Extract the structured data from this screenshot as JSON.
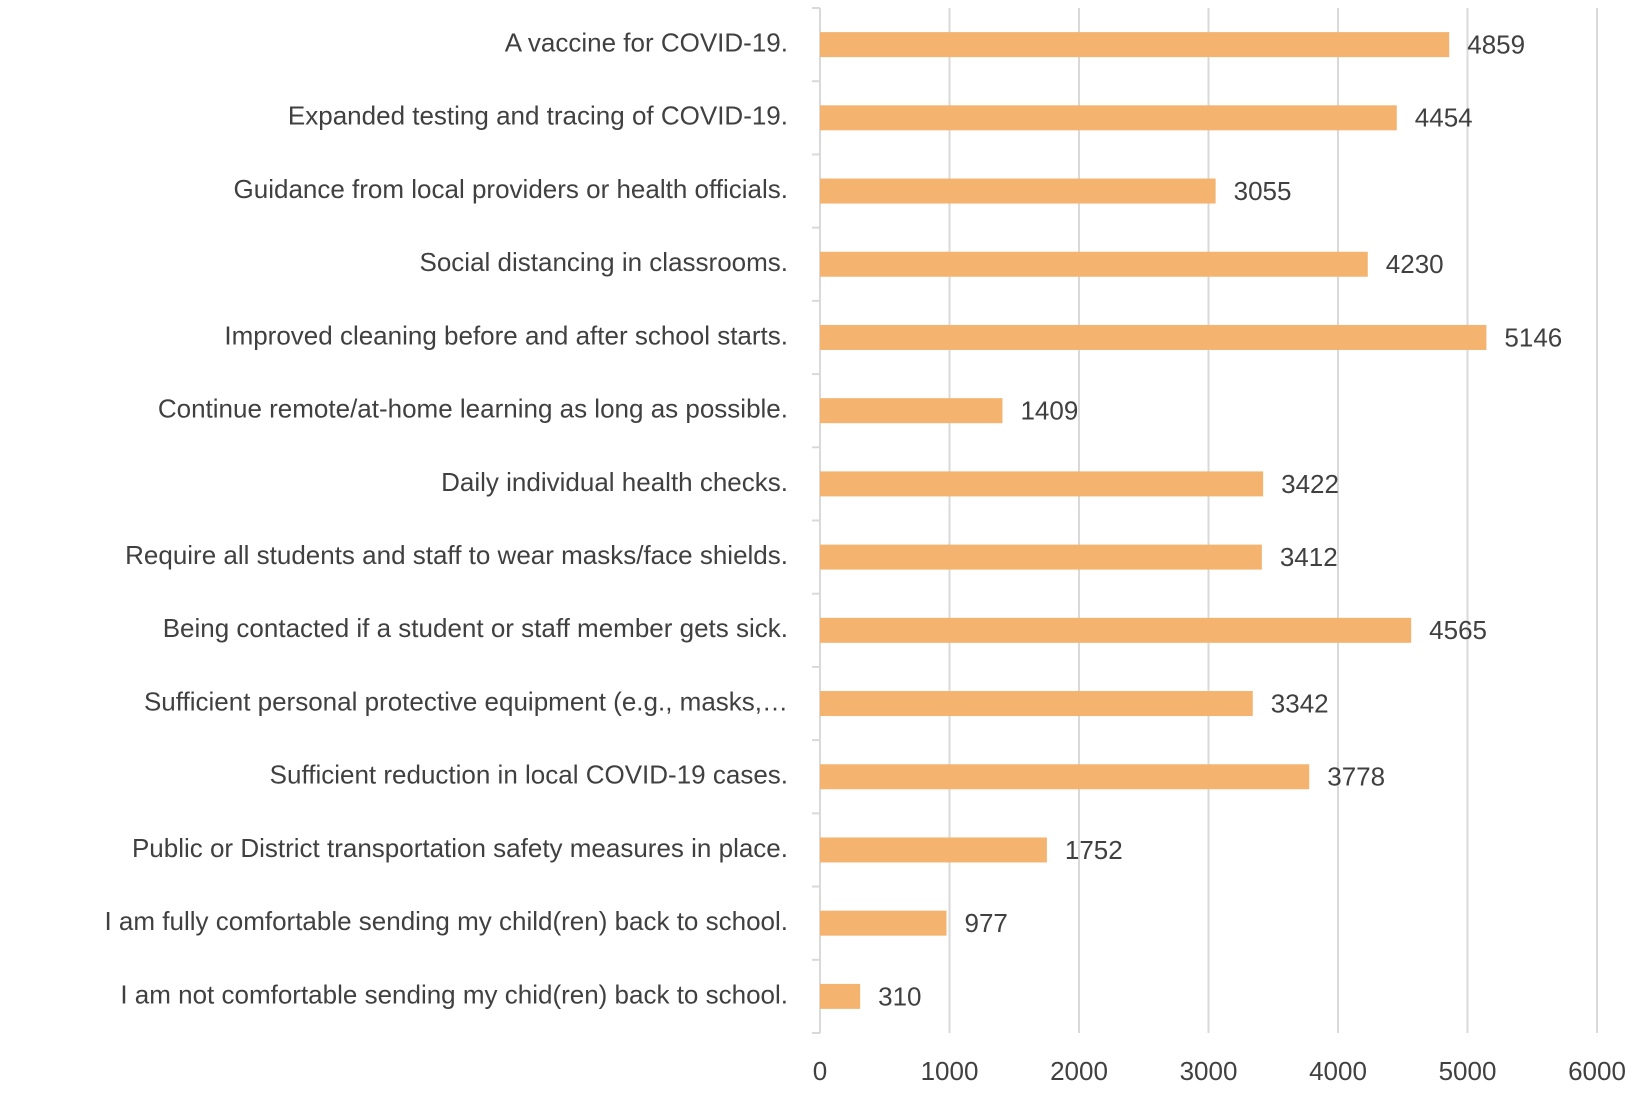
{
  "chart_data": {
    "type": "bar",
    "orientation": "horizontal",
    "categories": [
      "A vaccine for COVID-19.",
      "Expanded testing and tracing of COVID-19.",
      "Guidance from local providers or health officials.",
      "Social distancing in classrooms.",
      "Improved cleaning before and after school starts.",
      "Continue remote/at-home learning as long as possible.",
      "Daily individual health checks.",
      "Require all students and staff to wear masks/face shields.",
      "Being contacted if a student or staff member gets sick.",
      "Sufficient personal protective equipment (e.g., masks,…",
      "Sufficient reduction in local COVID-19 cases.",
      "Public or District transportation safety measures in place.",
      "I am fully comfortable sending my child(ren) back to school.",
      "I am not comfortable sending my chid(ren) back to school."
    ],
    "values": [
      4859,
      4454,
      3055,
      4230,
      5146,
      1409,
      3422,
      3412,
      4565,
      3342,
      3778,
      1752,
      977,
      310
    ],
    "color": "#f4b470",
    "xlim": [
      0,
      6000
    ],
    "xticks": [
      0,
      1000,
      2000,
      3000,
      4000,
      5000,
      6000
    ],
    "grid": true
  }
}
